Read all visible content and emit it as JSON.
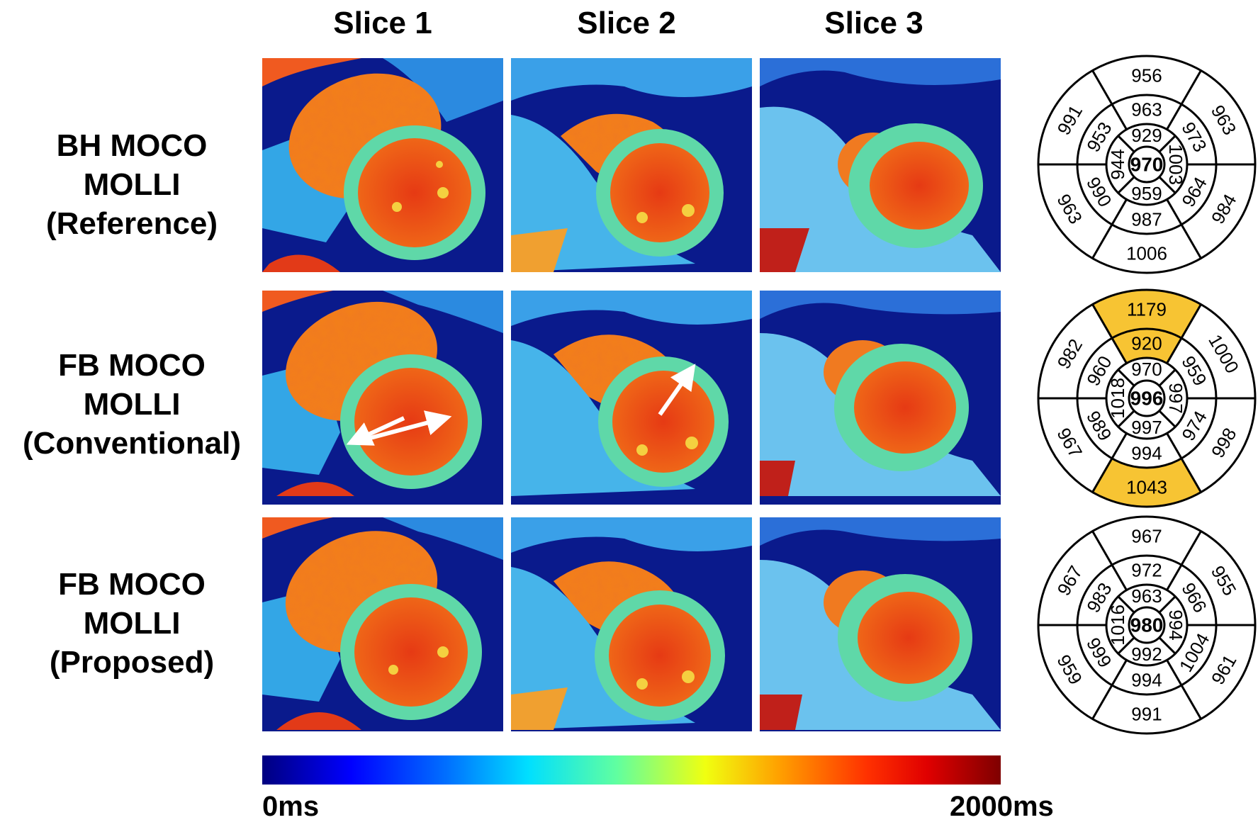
{
  "columns": [
    "Slice 1",
    "Slice 2",
    "Slice 3"
  ],
  "rows": [
    {
      "label_lines": [
        "BH MOCO",
        "MOLLI",
        "(Reference)"
      ],
      "bullseye": {
        "center": "970",
        "inner": [
          "929",
          "1003",
          "959",
          "944"
        ],
        "middle": [
          "963",
          "973",
          "964",
          "987",
          "990",
          "953"
        ],
        "outer": [
          "956",
          "963",
          "984",
          "1006",
          "963",
          "991"
        ],
        "highlight_middle": [],
        "highlight_outer": []
      }
    },
    {
      "label_lines": [
        "FB MOCO",
        "MOLLI",
        "(Conventional)"
      ],
      "bullseye": {
        "center": "996",
        "inner": [
          "970",
          "997",
          "997",
          "1018"
        ],
        "middle": [
          "920",
          "959",
          "974",
          "994",
          "989",
          "960"
        ],
        "outer": [
          "1179",
          "1000",
          "998",
          "1043",
          "967",
          "982"
        ],
        "highlight_middle": [
          0
        ],
        "highlight_outer": [
          0,
          3
        ]
      }
    },
    {
      "label_lines": [
        "FB MOCO",
        "MOLLI",
        "(Proposed)"
      ],
      "bullseye": {
        "center": "980",
        "inner": [
          "963",
          "994",
          "992",
          "1016"
        ],
        "middle": [
          "972",
          "966",
          "1004",
          "994",
          "999",
          "983"
        ],
        "outer": [
          "967",
          "955",
          "961",
          "991",
          "959",
          "967"
        ],
        "highlight_middle": [],
        "highlight_outer": []
      }
    }
  ],
  "colorbar": {
    "min_label": "0ms",
    "max_label": "2000ms"
  },
  "colors": {
    "highlight": "#f7c433",
    "line": "#000000"
  }
}
